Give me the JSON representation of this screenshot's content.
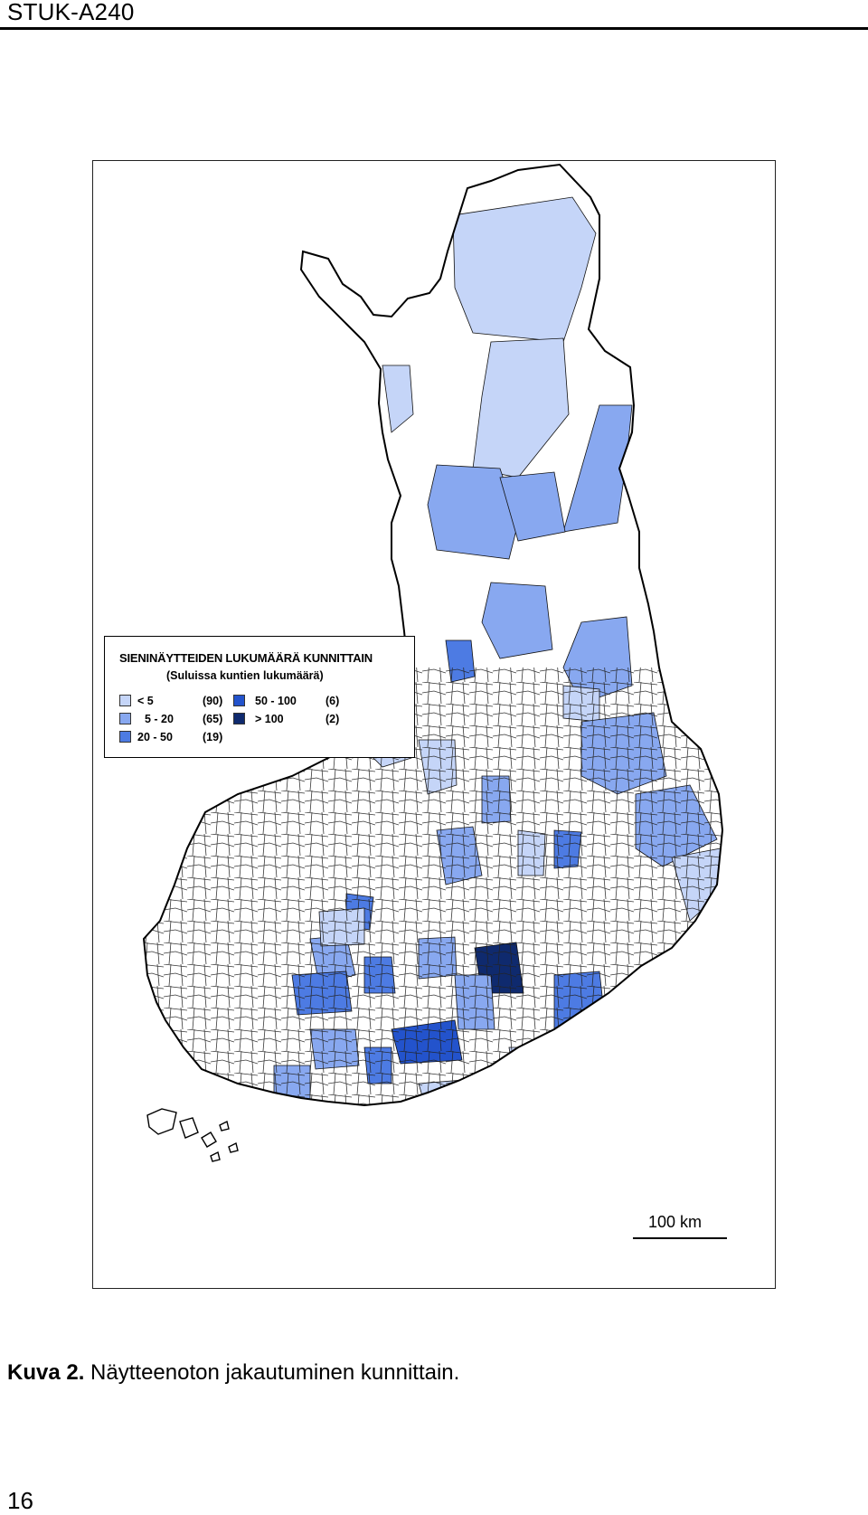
{
  "header": {
    "running_title": "STUK-A240"
  },
  "map": {
    "legend": {
      "title": "SIENINÄYTTEIDEN LUKUMÄÄRÄ KUNNITTAIN",
      "subtitle": "(Suluissa kuntien lukumäärä)",
      "classes": [
        {
          "range": "< 5",
          "count": "(90)",
          "color": "#c5d5f8"
        },
        {
          "range": "5 - 20",
          "count": "(65)",
          "color": "#88a8f0"
        },
        {
          "range": "20 - 50",
          "count": "(19)",
          "color": "#4d7be3"
        },
        {
          "range": "50 - 100",
          "count": "(6)",
          "color": "#2353cc"
        },
        {
          "range": "> 100",
          "count": "(2)",
          "color": "#0f2a6e"
        }
      ],
      "no_data_color": "#ffffff"
    },
    "scale_bar": {
      "label": "100 km"
    }
  },
  "caption": {
    "label": "Kuva 2.",
    "text": "Näytteenoton jakautuminen kunnittain."
  },
  "page_number": "16"
}
